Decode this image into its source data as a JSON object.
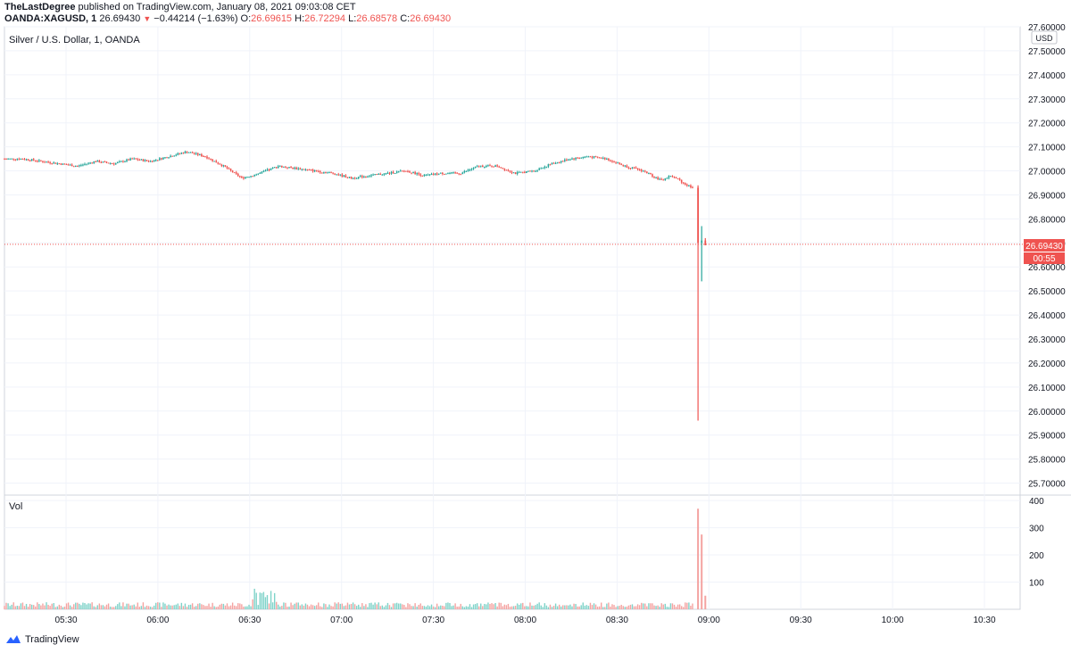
{
  "header": {
    "author": "TheLastDegree",
    "published": "published on TradingView.com, January 08, 2021 09:03:08 CET",
    "symbol": "OANDA:XAGUSD, 1",
    "last": "26.69430",
    "change": "−0.44214 (−1.63%)",
    "o_label": "O:",
    "o_value": "26.69615",
    "h_label": "H:",
    "h_value": "26.72294",
    "l_label": "L:",
    "l_value": "26.68578",
    "c_label": "C:",
    "c_value": "26.69430"
  },
  "pane_title": "Silver / U.S. Dollar, 1, OANDA",
  "vol_title": "Vol",
  "currency": "USD",
  "price_label": "26.69430",
  "countdown": "00:55",
  "footer": {
    "brand": "TradingView"
  },
  "colors": {
    "up": "#26a69a",
    "down": "#ef5350",
    "up_vol": "#7fd3c9",
    "down_vol": "#f4a3a1"
  },
  "chart_data": [
    {
      "type": "candlestick",
      "title": "Silver / U.S. Dollar, 1, OANDA",
      "ylim": [
        25.65,
        27.6
      ],
      "y_ticks": [
        "27.60000",
        "27.50000",
        "27.40000",
        "27.30000",
        "27.20000",
        "27.10000",
        "27.00000",
        "26.90000",
        "26.80000",
        "26.70000",
        "26.60000",
        "26.50000",
        "26.40000",
        "26.30000",
        "26.20000",
        "26.10000",
        "26.00000",
        "25.90000",
        "25.80000",
        "25.70000"
      ],
      "x_ticks": [
        "05:30",
        "06:00",
        "06:30",
        "07:00",
        "07:30",
        "08:00",
        "08:30",
        "09:00",
        "09:30",
        "10:00",
        "10:30"
      ],
      "last_price": 26.6943,
      "grid": true,
      "close_path": [
        [
          0,
          27.05
        ],
        [
          10,
          27.05
        ],
        [
          20,
          27.04
        ],
        [
          30,
          27.03
        ],
        [
          40,
          27.02
        ],
        [
          50,
          27.04
        ],
        [
          60,
          27.03
        ],
        [
          70,
          27.05
        ],
        [
          80,
          27.04
        ],
        [
          90,
          27.06
        ],
        [
          100,
          27.08
        ],
        [
          110,
          27.06
        ],
        [
          120,
          27.02
        ],
        [
          130,
          26.97
        ],
        [
          140,
          26.99
        ],
        [
          150,
          27.02
        ],
        [
          160,
          27.01
        ],
        [
          170,
          27.0
        ],
        [
          180,
          26.99
        ],
        [
          190,
          26.97
        ],
        [
          200,
          26.98
        ],
        [
          210,
          26.99
        ],
        [
          220,
          27.0
        ],
        [
          230,
          26.98
        ],
        [
          240,
          26.99
        ],
        [
          250,
          26.99
        ],
        [
          260,
          27.02
        ],
        [
          270,
          27.02
        ],
        [
          280,
          26.99
        ],
        [
          290,
          27.0
        ],
        [
          300,
          27.03
        ],
        [
          310,
          27.05
        ],
        [
          320,
          27.06
        ],
        [
          330,
          27.05
        ],
        [
          340,
          27.02
        ],
        [
          350,
          27.0
        ],
        [
          355,
          26.98
        ],
        [
          360,
          26.96
        ],
        [
          365,
          26.98
        ],
        [
          370,
          26.96
        ],
        [
          374,
          26.94
        ],
        [
          378,
          26.93
        ],
        [
          380,
          26.69
        ],
        [
          382,
          26.7
        ],
        [
          384,
          26.69
        ]
      ],
      "spike_candles": [
        {
          "t": 380,
          "o": 26.93,
          "h": 26.94,
          "l": 25.96,
          "c": 26.7
        },
        {
          "t": 382,
          "o": 26.7,
          "h": 26.77,
          "l": 26.54,
          "c": 26.71
        },
        {
          "t": 384,
          "o": 26.71,
          "h": 26.72,
          "l": 26.69,
          "c": 26.69
        }
      ]
    },
    {
      "type": "bar",
      "title": "Vol",
      "ylim": [
        0,
        420
      ],
      "y_ticks": [
        "400",
        "300",
        "200",
        "100"
      ],
      "spikes": [
        {
          "t": 380,
          "v": 370
        },
        {
          "t": 382,
          "v": 275
        },
        {
          "t": 384,
          "v": 50
        }
      ],
      "bumps": [
        {
          "t": 140,
          "v": 70
        },
        {
          "t": 145,
          "v": 60
        }
      ]
    }
  ]
}
